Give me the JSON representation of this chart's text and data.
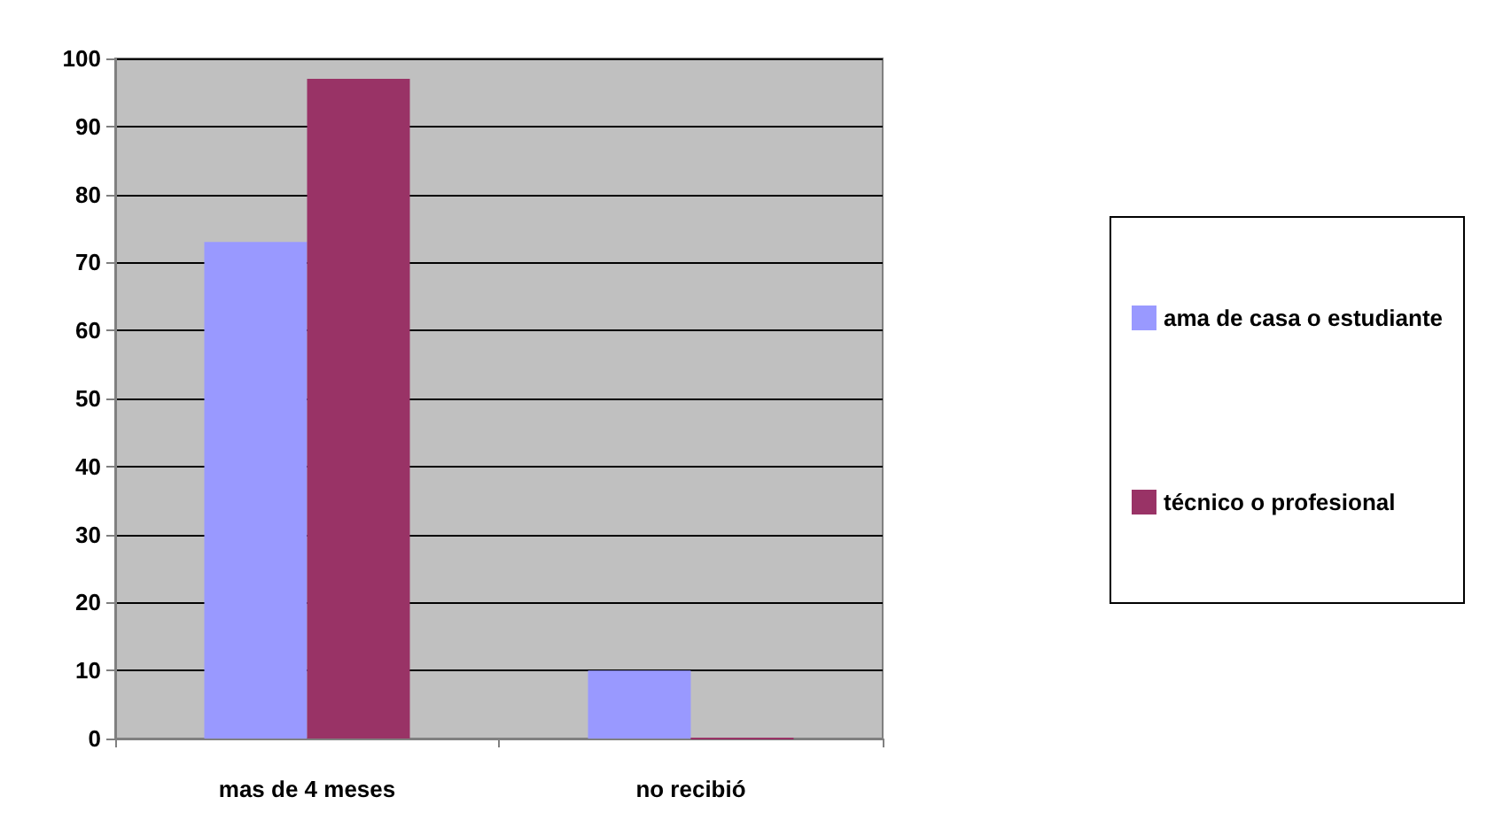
{
  "chart_data": {
    "type": "bar",
    "categories": [
      "mas de 4 meses",
      "no recibió"
    ],
    "series": [
      {
        "name": "ama de casa o estudiante",
        "color": "#9999ff",
        "values": [
          73,
          10
        ]
      },
      {
        "name": "técnico o profesional",
        "color": "#993366",
        "values": [
          97,
          0
        ]
      }
    ],
    "ylim": [
      0,
      100
    ],
    "yticks": [
      0,
      10,
      20,
      30,
      40,
      50,
      60,
      70,
      80,
      90,
      100
    ],
    "grid": "y",
    "legend": "right"
  }
}
